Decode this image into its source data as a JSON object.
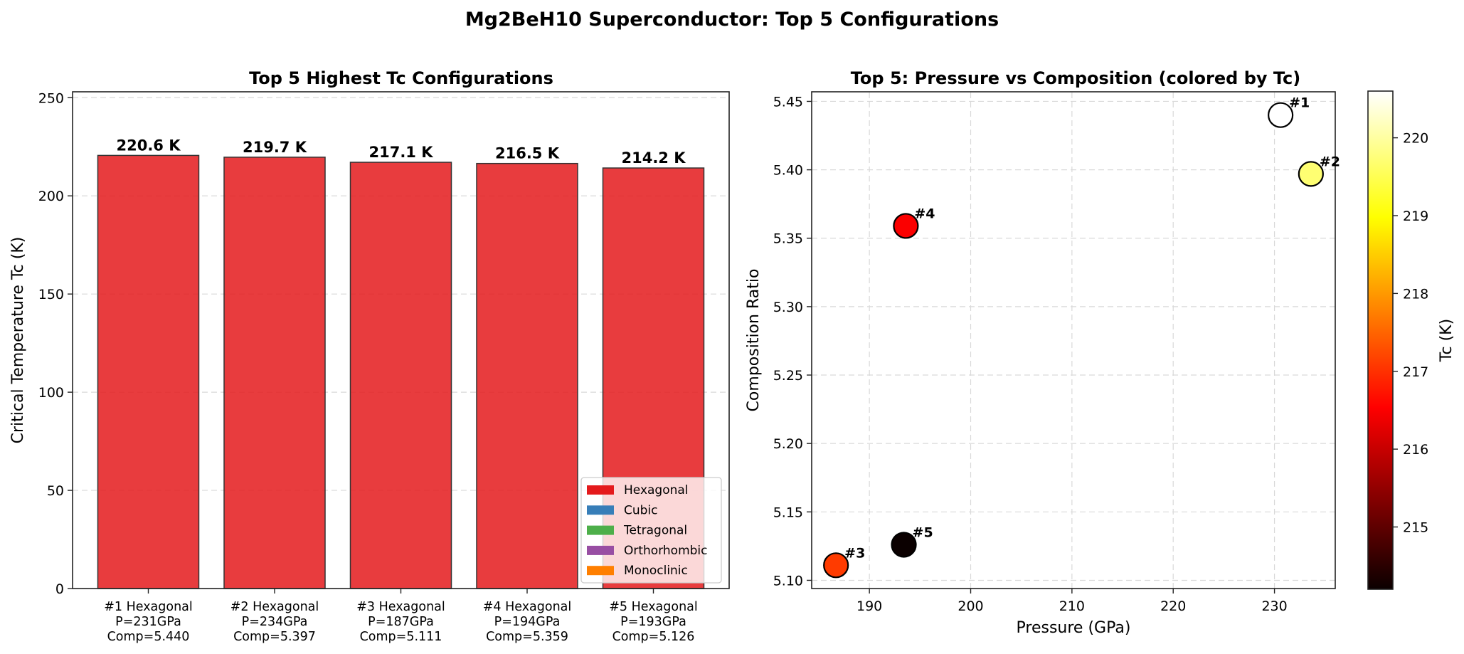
{
  "chart_data": [
    {
      "type": "bar",
      "title": "Top 5 Highest Tc Configurations",
      "xlabel": "",
      "ylabel": "Critical Temperature Tc (K)",
      "ylim": [
        0,
        253
      ],
      "yticks": [
        0,
        50,
        100,
        150,
        200,
        250
      ],
      "grid": "y, dashed",
      "categories": [
        [
          "#1 Hexagonal",
          "P=231GPa",
          "Comp=5.440"
        ],
        [
          "#2 Hexagonal",
          "P=234GPa",
          "Comp=5.397"
        ],
        [
          "#3 Hexagonal",
          "P=187GPa",
          "Comp=5.111"
        ],
        [
          "#4 Hexagonal",
          "P=194GPa",
          "Comp=5.359"
        ],
        [
          "#5 Hexagonal",
          "P=193GPa",
          "Comp=5.126"
        ]
      ],
      "values": [
        220.6,
        219.7,
        217.1,
        216.5,
        214.2
      ],
      "value_labels": [
        "220.6 K",
        "219.7 K",
        "217.1 K",
        "216.5 K",
        "214.2 K"
      ],
      "bar_color": "#e41a1c",
      "legend": {
        "placement": "lower-right",
        "entries": [
          {
            "label": "Hexagonal",
            "color": "#e41a1c"
          },
          {
            "label": "Cubic",
            "color": "#377eb8"
          },
          {
            "label": "Tetragonal",
            "color": "#4daf4a"
          },
          {
            "label": "Orthorhombic",
            "color": "#984ea3"
          },
          {
            "label": "Monoclinic",
            "color": "#ff7f00"
          }
        ]
      }
    },
    {
      "type": "scatter",
      "title": "Top 5: Pressure vs Composition (colored by Tc)",
      "xlabel": "Pressure (GPa)",
      "ylabel": "Composition Ratio",
      "xlim": [
        184.3,
        236.0
      ],
      "ylim": [
        5.094,
        5.457
      ],
      "xticks": [
        190,
        200,
        210,
        220,
        230
      ],
      "yticks": [
        5.1,
        5.15,
        5.2,
        5.25,
        5.3,
        5.35,
        5.4,
        5.45
      ],
      "grid": "both, dashed",
      "colormap": "hot",
      "points": [
        {
          "label": "#1",
          "x": 230.6,
          "y": 5.44,
          "tc": 220.6
        },
        {
          "label": "#2",
          "x": 233.6,
          "y": 5.397,
          "tc": 219.7
        },
        {
          "label": "#3",
          "x": 186.7,
          "y": 5.111,
          "tc": 217.1
        },
        {
          "label": "#4",
          "x": 193.6,
          "y": 5.359,
          "tc": 216.5
        },
        {
          "label": "#5",
          "x": 193.4,
          "y": 5.126,
          "tc": 214.2
        }
      ],
      "colorbar": {
        "label": "Tc (K)",
        "range": [
          214.2,
          220.6
        ],
        "ticks": [
          215,
          216,
          217,
          218,
          219,
          220
        ]
      }
    }
  ],
  "figure": {
    "suptitle": "Mg2BeH10 Superconductor: Top 5 Configurations"
  }
}
